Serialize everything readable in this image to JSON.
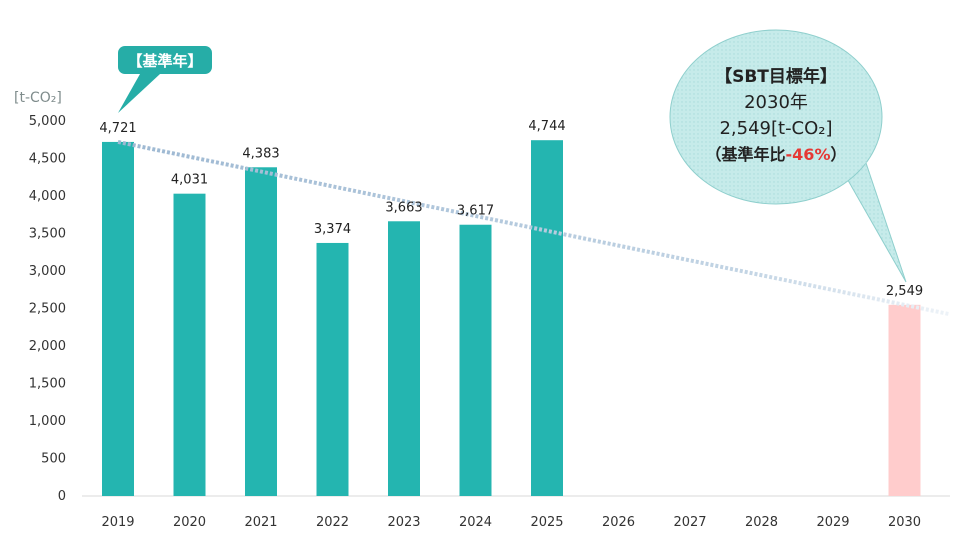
{
  "colors": {
    "bar": "#24B5B0",
    "target_bar": "#FFCCCC",
    "trend": "#A9C0D6",
    "callout_base": "#26ADA7",
    "target_bubble": "#C8ECEC",
    "reduction": "#E53935"
  },
  "chart_data": {
    "type": "bar",
    "unit_label": "[t-CO₂]",
    "categories": [
      "2019",
      "2020",
      "2021",
      "2022",
      "2023",
      "2024",
      "2025",
      "2026",
      "2027",
      "2028",
      "2029",
      "2030"
    ],
    "values": [
      4721,
      4031,
      4383,
      3374,
      3663,
      3617,
      4744,
      null,
      null,
      null,
      null,
      2549
    ],
    "data_labels": [
      "4,721",
      "4,031",
      "4,383",
      "3,374",
      "3,663",
      "3,617",
      "4,744",
      "",
      "",
      "",
      "",
      "2,549"
    ],
    "ylim": [
      0,
      5000
    ],
    "yticks": [
      0,
      500,
      1000,
      1500,
      2000,
      2500,
      3000,
      3500,
      4000,
      4500,
      5000
    ],
    "ytick_labels": [
      "0",
      "500",
      "1,000",
      "1,500",
      "2,000",
      "2,500",
      "3,000",
      "3,500",
      "4,000",
      "4,500",
      "5,000"
    ],
    "target_category": "2030",
    "trend_line": {
      "from_category": "2019",
      "from_value": 4721,
      "to_category": "2030",
      "to_value": 2549,
      "style": "dotted"
    },
    "annotations": {
      "base_year": "【基準年】",
      "target": {
        "line1": "【SBT目標年】",
        "line2": "2030年",
        "line3": "2,549[t-CO₂]",
        "line4_prefix": "（基準年比",
        "line4_value": "-46%",
        "line4_suffix": "）"
      }
    }
  }
}
